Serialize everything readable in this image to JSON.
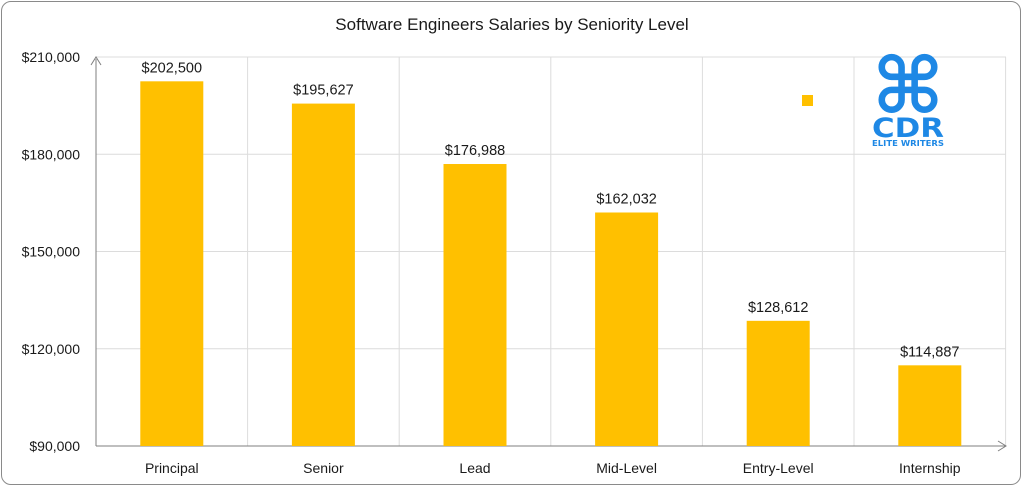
{
  "chart_data": {
    "type": "bar",
    "title": "Software Engineers Salaries by Seniority Level",
    "categories": [
      "Principal",
      "Senior",
      "Lead",
      "Mid-Level",
      "Entry-Level",
      "Internship"
    ],
    "values": [
      202500,
      195627,
      176988,
      162032,
      128612,
      114887
    ],
    "data_labels": [
      "$202,500",
      "$195,627",
      "$176,988",
      "$162,032",
      "$128,612",
      "$114,887"
    ],
    "yticks": [
      90000,
      120000,
      150000,
      180000,
      210000
    ],
    "ytick_labels": [
      "$90,000",
      "$120,000",
      "$150,000",
      "$180,000",
      "$210,000"
    ],
    "ylim": [
      90000,
      210000
    ],
    "xlabel": "",
    "ylabel": "",
    "grid": true,
    "bar_color": "#ffc000",
    "legend_marker_color": "#ffc000"
  },
  "logo": {
    "glyph": "⌘",
    "main": "CDR",
    "tagline": "ELITE WRITERS",
    "color": "#1e88e5"
  }
}
